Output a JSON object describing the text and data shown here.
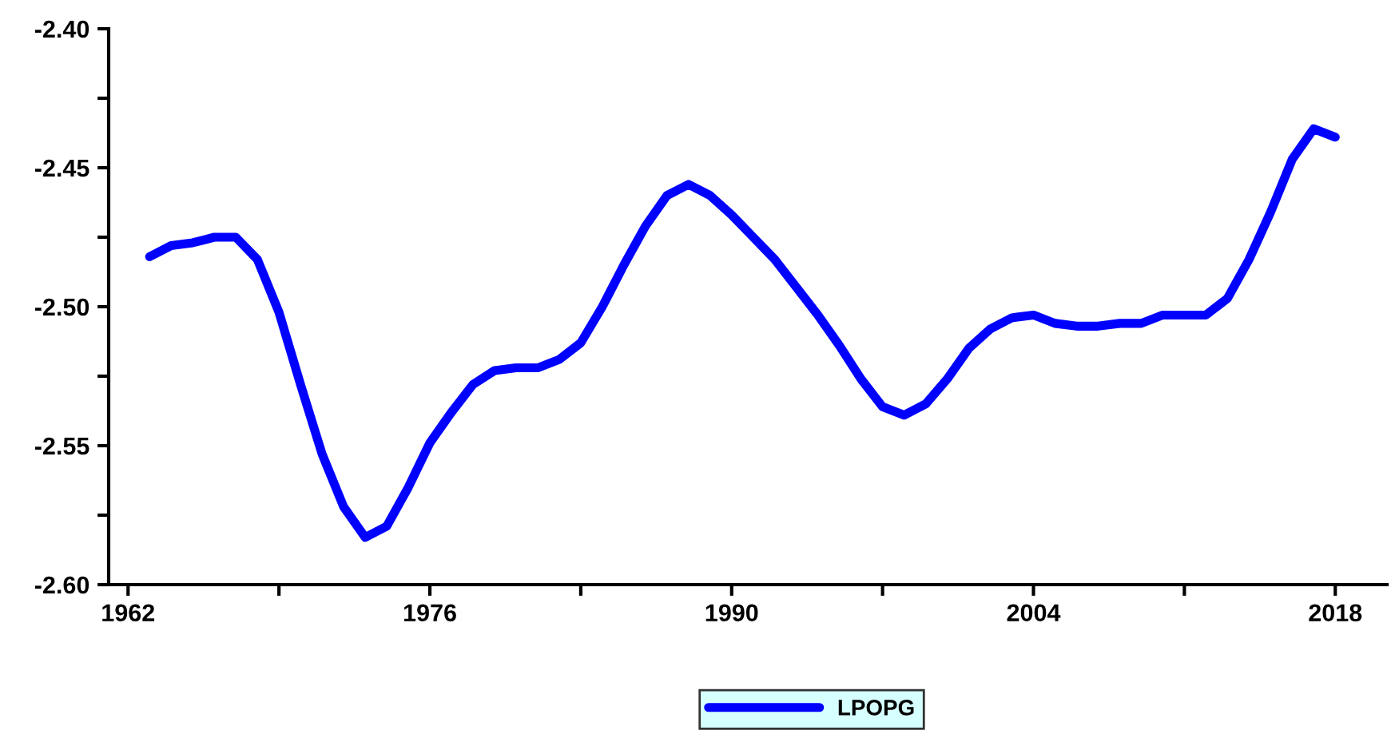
{
  "chart_data": {
    "type": "line",
    "x": [
      1963,
      1964,
      1965,
      1966,
      1967,
      1968,
      1969,
      1970,
      1971,
      1972,
      1973,
      1974,
      1975,
      1976,
      1977,
      1978,
      1979,
      1980,
      1981,
      1982,
      1983,
      1984,
      1985,
      1986,
      1987,
      1988,
      1989,
      1990,
      1991,
      1992,
      1993,
      1994,
      1995,
      1996,
      1997,
      1998,
      1999,
      2000,
      2001,
      2002,
      2003,
      2004,
      2005,
      2006,
      2007,
      2008,
      2009,
      2010,
      2011,
      2012,
      2013,
      2014,
      2015,
      2016,
      2017,
      2018
    ],
    "series": [
      {
        "name": "LPOPG",
        "color": "#0000ff",
        "values": [
          -2.482,
          -2.478,
          -2.477,
          -2.475,
          -2.475,
          -2.483,
          -2.502,
          -2.528,
          -2.553,
          -2.572,
          -2.583,
          -2.579,
          -2.565,
          -2.549,
          -2.538,
          -2.528,
          -2.523,
          -2.522,
          -2.522,
          -2.519,
          -2.513,
          -2.5,
          -2.485,
          -2.471,
          -2.46,
          -2.456,
          -2.46,
          -2.467,
          -2.475,
          -2.483,
          -2.493,
          -2.503,
          -2.514,
          -2.526,
          -2.536,
          -2.539,
          -2.535,
          -2.526,
          -2.515,
          -2.508,
          -2.504,
          -2.503,
          -2.506,
          -2.507,
          -2.507,
          -2.506,
          -2.506,
          -2.503,
          -2.503,
          -2.503,
          -2.497,
          -2.483,
          -2.466,
          -2.447,
          -2.436,
          -2.439
        ]
      }
    ],
    "xlim": [
      1961.1,
      2020.4
    ],
    "xticks": [
      1962,
      {
        "value": 1969,
        "label": null
      },
      1976,
      {
        "value": 1983,
        "label": null
      },
      1990,
      {
        "value": 1997,
        "label": null
      },
      2004,
      {
        "value": 2011,
        "label": null
      },
      2018
    ],
    "ylim": [
      -2.6,
      -2.4
    ],
    "yticks": [
      {
        "value": -2.6,
        "label": "-2.60"
      },
      {
        "value": -2.575,
        "label": null
      },
      {
        "value": -2.55,
        "label": "-2.55"
      },
      {
        "value": -2.525,
        "label": null
      },
      {
        "value": -2.5,
        "label": "-2.50"
      },
      {
        "value": -2.475,
        "label": null
      },
      {
        "value": -2.45,
        "label": "-2.45"
      },
      {
        "value": -2.425,
        "label": null
      },
      {
        "value": -2.4,
        "label": "-2.40"
      }
    ],
    "grid": false,
    "legend": "bottom",
    "marker": "none",
    "line_style": "solid"
  }
}
